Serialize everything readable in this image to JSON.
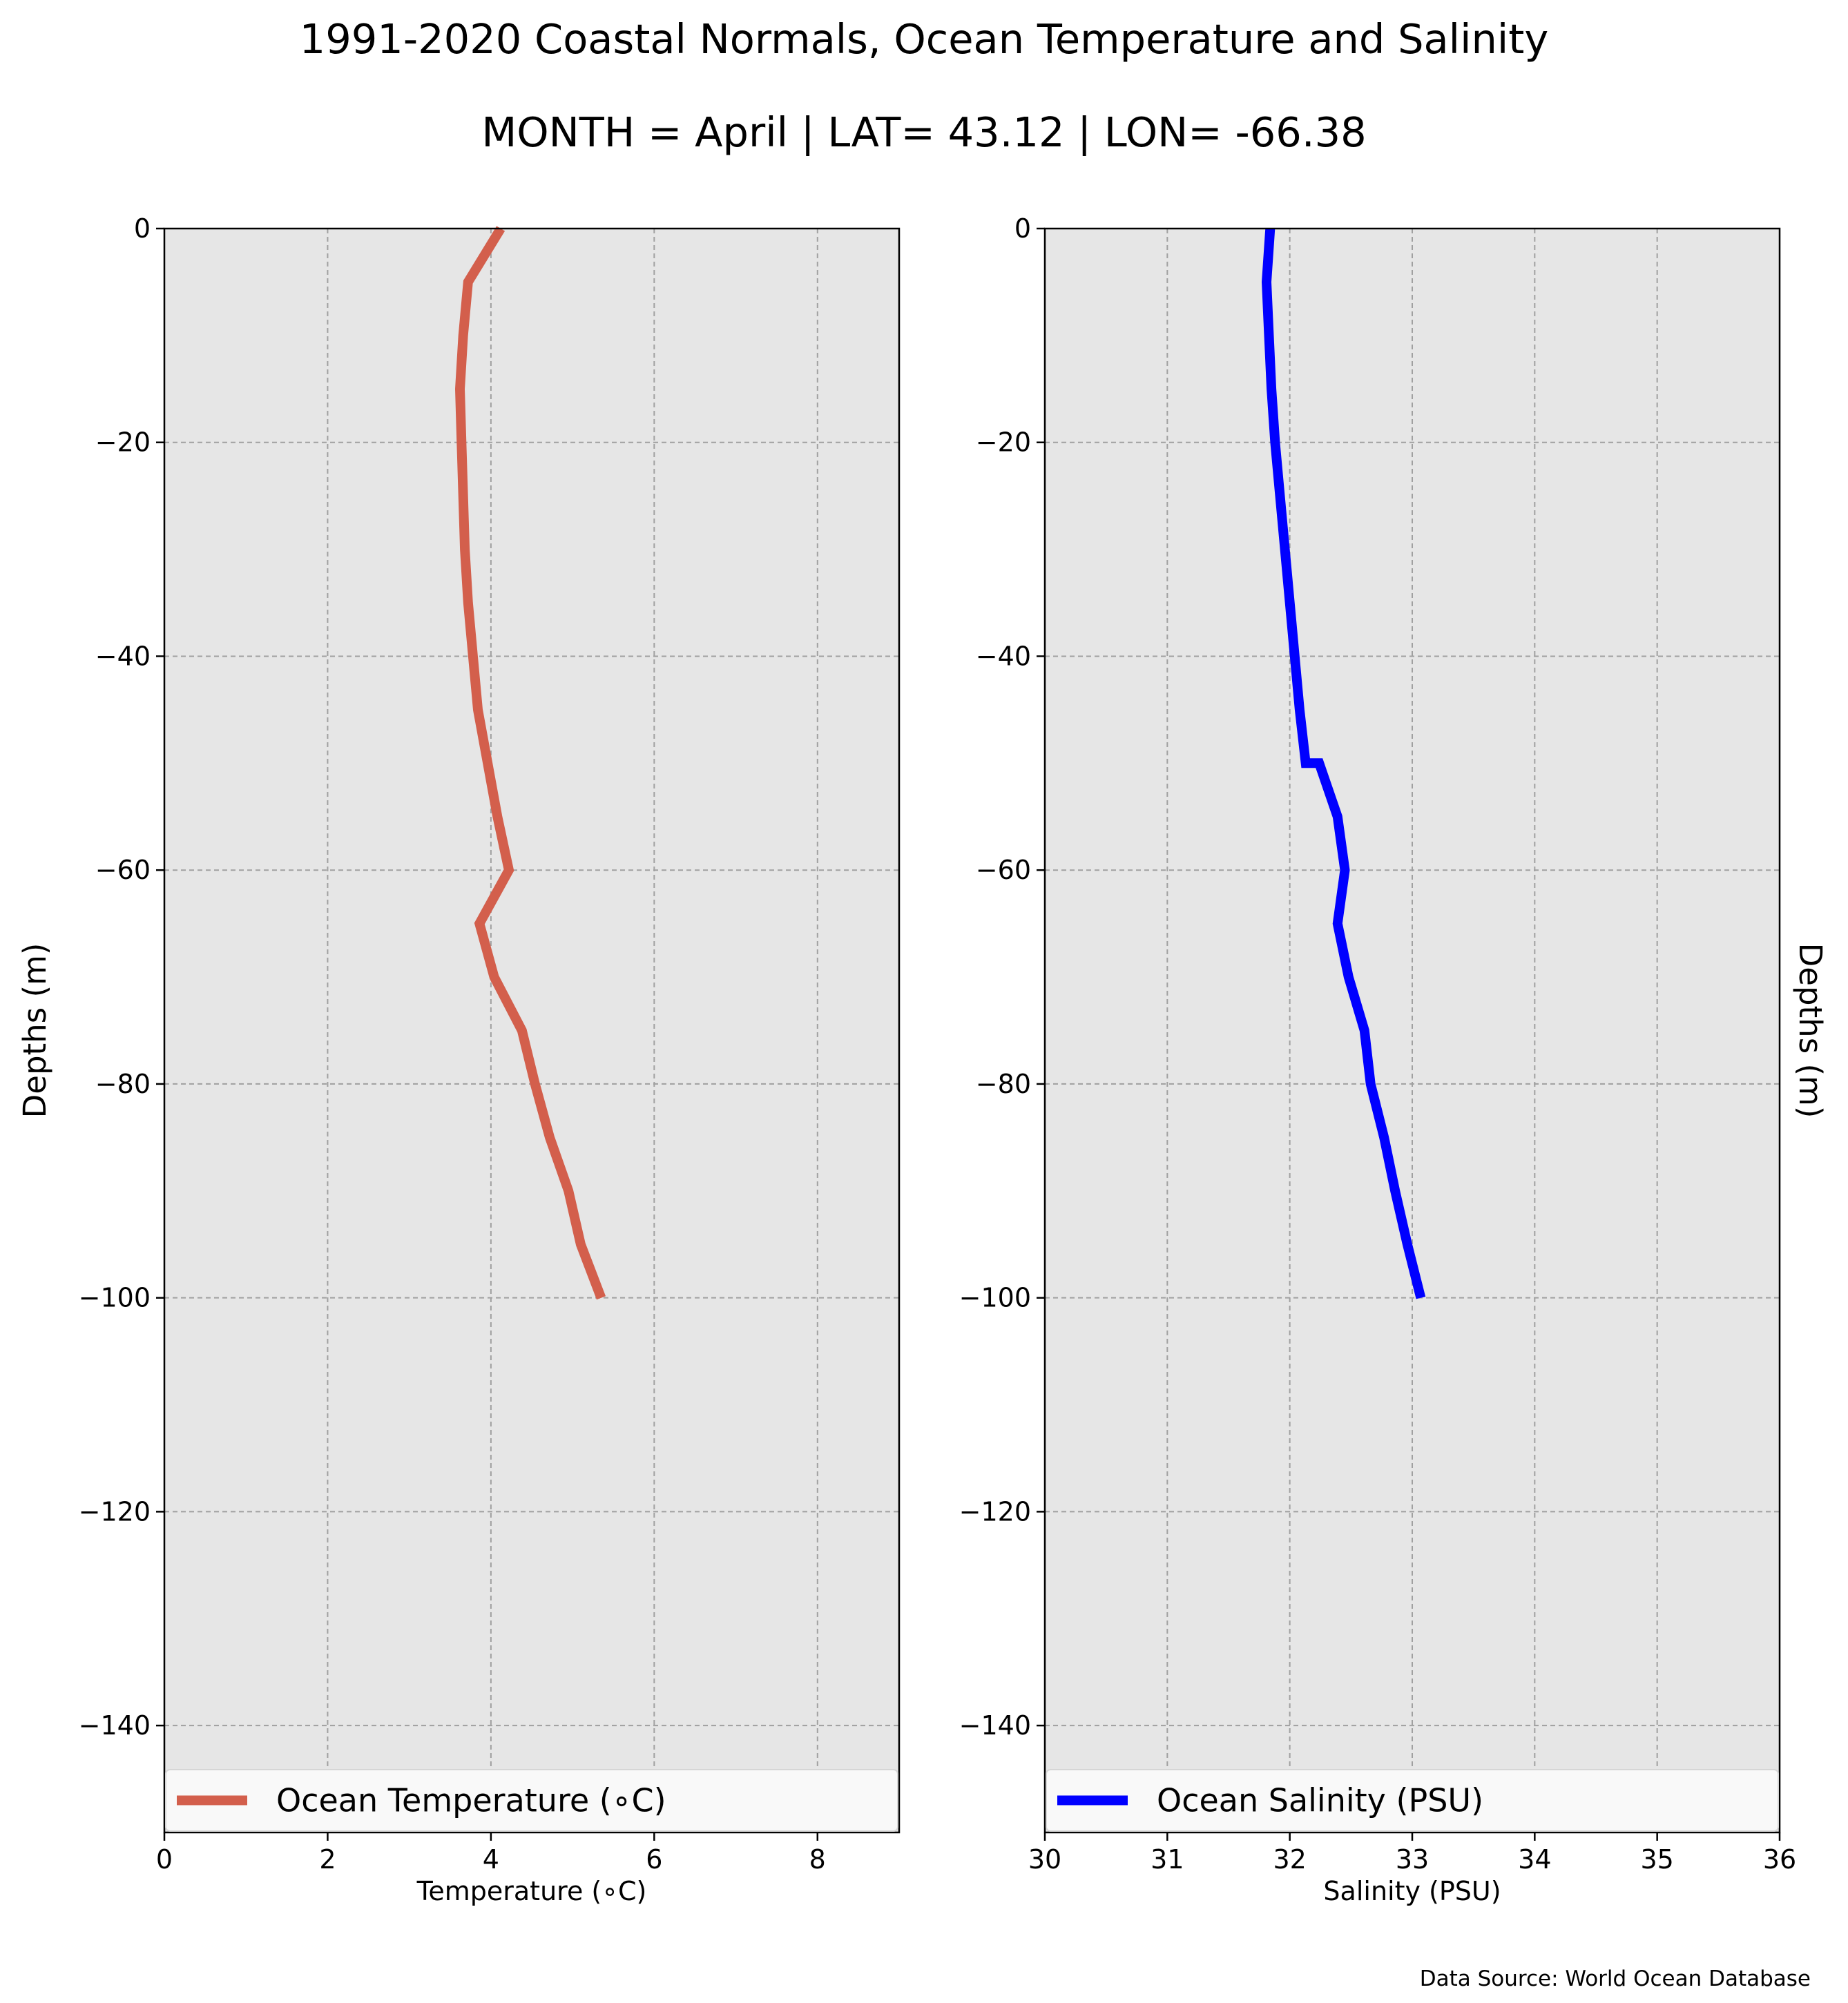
{
  "title": "1991-2020 Coastal Normals, Ocean Temperature and Salinity",
  "subtitle": "MONTH = April | LAT= 43.12 | LON= -66.38",
  "source": "Data Source: World Ocean Database",
  "colors": {
    "temperature": "#d35f4c",
    "salinity": "#0000ff",
    "axes_bg": "#e6e6e6",
    "grid": "#a0a0a0"
  },
  "chart_data": [
    {
      "type": "line",
      "xlabel": "Temperature (∘C)",
      "ylabel": "Depths (m)",
      "xlim": [
        0,
        9
      ],
      "ylim": [
        -150,
        0
      ],
      "xticks": [
        0,
        2,
        4,
        6,
        8
      ],
      "xtick_labels": [
        "0",
        "2",
        "4",
        "6",
        "8"
      ],
      "yticks": [
        0,
        -20,
        -40,
        -60,
        -80,
        -100,
        -120,
        -140
      ],
      "ytick_labels": [
        "0",
        "−20",
        "−40",
        "−60",
        "−80",
        "−100",
        "−120",
        "−140"
      ],
      "ylabel_side": "left",
      "grid": true,
      "legend_position": "bottom",
      "series": [
        {
          "name": "Ocean Temperature (∘C)",
          "color": "#d35f4c",
          "x": [
            4.12,
            3.72,
            3.66,
            3.62,
            3.64,
            3.66,
            3.68,
            3.72,
            3.78,
            3.84,
            4.08,
            4.22,
            3.86,
            4.04,
            4.38,
            4.54,
            4.72,
            4.95,
            5.1,
            5.35
          ],
          "y": [
            0,
            -5,
            -10,
            -15,
            -20,
            -25,
            -30,
            -35,
            -40,
            -45,
            -55,
            -60,
            -65,
            -70,
            -75,
            -80,
            -85,
            -90,
            -95,
            -100
          ]
        }
      ]
    },
    {
      "type": "line",
      "xlabel": "Salinity (PSU)",
      "ylabel": "Depths (m)",
      "xlim": [
        30,
        36
      ],
      "ylim": [
        -150,
        0
      ],
      "xticks": [
        30,
        31,
        32,
        33,
        34,
        35,
        36
      ],
      "xtick_labels": [
        "30",
        "31",
        "32",
        "33",
        "34",
        "35",
        "36"
      ],
      "yticks": [
        0,
        -20,
        -40,
        -60,
        -80,
        -100,
        -120,
        -140
      ],
      "ytick_labels": [
        "0",
        "−20",
        "−40",
        "−60",
        "−80",
        "−100",
        "−120",
        "−140"
      ],
      "ylabel_side": "right",
      "grid": true,
      "legend_position": "bottom",
      "series": [
        {
          "name": "Ocean Salinity (PSU)",
          "color": "#0000ff",
          "x": [
            31.84,
            31.81,
            31.83,
            31.85,
            31.88,
            31.92,
            31.96,
            32.0,
            32.04,
            32.08,
            32.13,
            32.24,
            32.39,
            32.45,
            32.39,
            32.48,
            32.61,
            32.66,
            32.77,
            32.86,
            32.96,
            33.07
          ],
          "y": [
            0,
            -5,
            -10,
            -15,
            -20,
            -25,
            -30,
            -35,
            -40,
            -45,
            -50,
            -50,
            -55,
            -60,
            -65,
            -70,
            -75,
            -80,
            -85,
            -90,
            -95,
            -100
          ]
        }
      ]
    }
  ]
}
